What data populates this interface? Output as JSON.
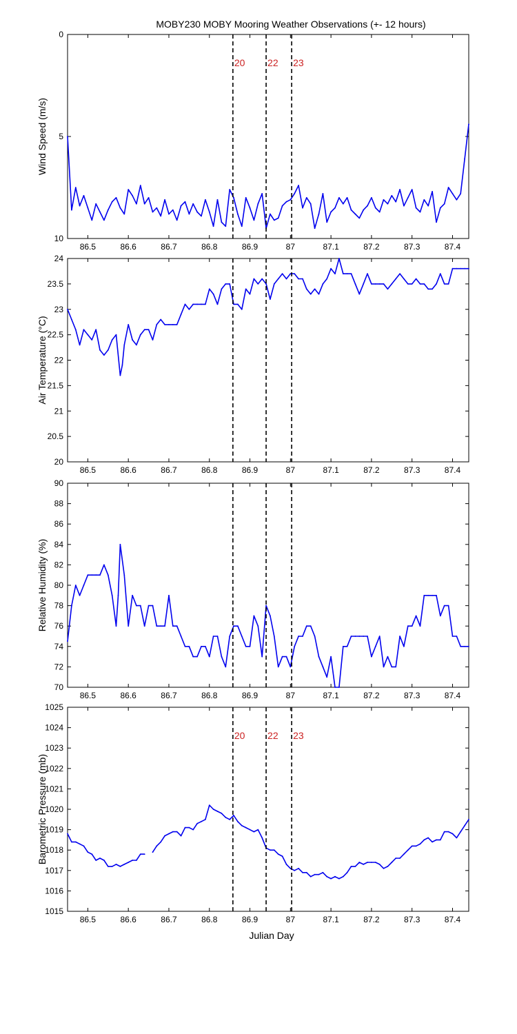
{
  "figure": {
    "title": "MOBY230 MOBY Mooring Weather Observations (+- 12 hours)",
    "xlabel": "Julian Day",
    "x_ticks": [
      "86.5",
      "86.6",
      "86.7",
      "86.8",
      "86.9",
      "87",
      "87.1",
      "87.2",
      "87.3",
      "87.4"
    ],
    "markers": [
      {
        "label": "20",
        "x": 86.858
      },
      {
        "label": "22",
        "x": 86.94
      },
      {
        "label": "23",
        "x": 87.003
      }
    ],
    "colors": {
      "series": "#0000ee",
      "marker_label": "#cc2222",
      "marker_line": "#000000"
    }
  },
  "chart_data": [
    {
      "type": "line",
      "ylabel": "Wind Speed (m/s)",
      "xlim": [
        86.45,
        87.44
      ],
      "ylim": [
        10,
        0
      ],
      "y_reversed": true,
      "y_ticks": [
        "0",
        "5",
        "10"
      ],
      "show_marker_labels": true,
      "series": [
        {
          "x": [
            86.45,
            86.46,
            86.47,
            86.48,
            86.49,
            86.5,
            86.51,
            86.52,
            86.53,
            86.54,
            86.55,
            86.56,
            86.57,
            86.58,
            86.59,
            86.6,
            86.61,
            86.62,
            86.63,
            86.64,
            86.65,
            86.66,
            86.67,
            86.68,
            86.69,
            86.7,
            86.71,
            86.72,
            86.73,
            86.74,
            86.75,
            86.76,
            86.77,
            86.78,
            86.79,
            86.8,
            86.81,
            86.82,
            86.83,
            86.84,
            86.85,
            86.86,
            86.87,
            86.88,
            86.89,
            86.9,
            86.91,
            86.92,
            86.93,
            86.94,
            86.95,
            86.96,
            86.97,
            86.98,
            86.99,
            87.0,
            87.01,
            87.02,
            87.03,
            87.04,
            87.05,
            87.06,
            87.07,
            87.08,
            87.09,
            87.1,
            87.11,
            87.12,
            87.13,
            87.14,
            87.15,
            87.16,
            87.17,
            87.18,
            87.19,
            87.2,
            87.21,
            87.22,
            87.23,
            87.24,
            87.25,
            87.26,
            87.27,
            87.28,
            87.29,
            87.3,
            87.31,
            87.32,
            87.33,
            87.34,
            87.35,
            87.36,
            87.37,
            87.38,
            87.39,
            87.4,
            87.41,
            87.42,
            87.43,
            87.44
          ],
          "y": [
            5.0,
            8.6,
            7.5,
            8.4,
            7.9,
            8.5,
            9.1,
            8.3,
            8.7,
            9.1,
            8.6,
            8.2,
            8.0,
            8.5,
            8.8,
            7.6,
            7.9,
            8.3,
            7.4,
            8.3,
            8.0,
            8.7,
            8.5,
            8.9,
            8.1,
            8.8,
            8.6,
            9.1,
            8.4,
            8.2,
            8.8,
            8.3,
            8.7,
            8.9,
            8.1,
            8.7,
            9.4,
            8.1,
            9.2,
            9.4,
            7.6,
            8.0,
            8.8,
            9.4,
            8.0,
            8.5,
            9.1,
            8.3,
            7.8,
            9.5,
            8.8,
            9.1,
            9.0,
            8.4,
            8.2,
            8.1,
            7.8,
            7.4,
            8.5,
            8.0,
            8.3,
            9.5,
            8.8,
            7.8,
            9.2,
            8.7,
            8.5,
            8.0,
            8.3,
            8.0,
            8.6,
            8.8,
            9.0,
            8.6,
            8.4,
            8.0,
            8.5,
            8.7,
            8.1,
            8.3,
            7.9,
            8.2,
            7.6,
            8.4,
            8.0,
            7.6,
            8.5,
            8.7,
            8.1,
            8.4,
            7.7,
            9.2,
            8.5,
            8.3,
            7.5,
            7.8,
            8.1,
            7.8,
            6.1,
            4.4
          ]
        }
      ]
    },
    {
      "type": "line",
      "ylabel": "Air Temperature (°C)",
      "xlim": [
        86.45,
        87.44
      ],
      "ylim": [
        20,
        24
      ],
      "y_ticks": [
        "20",
        "20.5",
        "21",
        "21.5",
        "22",
        "22.5",
        "23",
        "23.5",
        "24"
      ],
      "series": [
        {
          "x": [
            86.45,
            86.46,
            86.47,
            86.48,
            86.49,
            86.5,
            86.51,
            86.52,
            86.53,
            86.54,
            86.55,
            86.56,
            86.57,
            86.58,
            86.585,
            86.59,
            86.6,
            86.61,
            86.62,
            86.63,
            86.64,
            86.65,
            86.66,
            86.67,
            86.68,
            86.69,
            86.7,
            86.71,
            86.72,
            86.73,
            86.74,
            86.75,
            86.76,
            86.77,
            86.78,
            86.79,
            86.8,
            86.81,
            86.82,
            86.83,
            86.84,
            86.85,
            86.86,
            86.87,
            86.88,
            86.89,
            86.9,
            86.91,
            86.92,
            86.93,
            86.94,
            86.95,
            86.96,
            86.97,
            86.98,
            86.99,
            87.0,
            87.01,
            87.02,
            87.03,
            87.04,
            87.05,
            87.06,
            87.07,
            87.08,
            87.09,
            87.1,
            87.11,
            87.12,
            87.13,
            87.14,
            87.15,
            87.16,
            87.17,
            87.18,
            87.19,
            87.2,
            87.21,
            87.22,
            87.23,
            87.24,
            87.25,
            87.26,
            87.27,
            87.28,
            87.29,
            87.3,
            87.31,
            87.32,
            87.33,
            87.34,
            87.35,
            87.36,
            87.37,
            87.38,
            87.39,
            87.4,
            87.41,
            87.42,
            87.43,
            87.44
          ],
          "y": [
            23.0,
            22.8,
            22.6,
            22.3,
            22.6,
            22.5,
            22.4,
            22.6,
            22.2,
            22.1,
            22.2,
            22.4,
            22.5,
            21.7,
            21.9,
            22.3,
            22.7,
            22.4,
            22.3,
            22.5,
            22.6,
            22.6,
            22.4,
            22.7,
            22.8,
            22.7,
            22.7,
            22.7,
            22.7,
            22.9,
            23.1,
            23.0,
            23.1,
            23.1,
            23.1,
            23.1,
            23.4,
            23.3,
            23.1,
            23.4,
            23.5,
            23.5,
            23.1,
            23.1,
            23.0,
            23.4,
            23.3,
            23.6,
            23.5,
            23.6,
            23.5,
            23.2,
            23.5,
            23.6,
            23.7,
            23.6,
            23.7,
            23.7,
            23.6,
            23.6,
            23.4,
            23.3,
            23.4,
            23.3,
            23.5,
            23.6,
            23.8,
            23.7,
            24.0,
            23.7,
            23.7,
            23.7,
            23.5,
            23.3,
            23.5,
            23.7,
            23.5,
            23.5,
            23.5,
            23.5,
            23.4,
            23.5,
            23.6,
            23.7,
            23.6,
            23.5,
            23.5,
            23.6,
            23.5,
            23.5,
            23.4,
            23.4,
            23.5,
            23.7,
            23.5,
            23.5,
            23.8,
            23.8,
            23.8,
            23.8,
            23.8
          ]
        }
      ]
    },
    {
      "type": "line",
      "ylabel": "Relative Humidity (%)",
      "xlim": [
        86.45,
        87.44
      ],
      "ylim": [
        70,
        90
      ],
      "y_ticks": [
        "70",
        "72",
        "74",
        "76",
        "78",
        "80",
        "82",
        "84",
        "86",
        "88",
        "90"
      ],
      "series": [
        {
          "x": [
            86.45,
            86.46,
            86.47,
            86.48,
            86.49,
            86.5,
            86.51,
            86.52,
            86.53,
            86.54,
            86.55,
            86.56,
            86.57,
            86.575,
            86.58,
            86.59,
            86.6,
            86.61,
            86.62,
            86.63,
            86.64,
            86.65,
            86.66,
            86.67,
            86.68,
            86.69,
            86.7,
            86.71,
            86.72,
            86.73,
            86.74,
            86.75,
            86.76,
            86.77,
            86.78,
            86.79,
            86.8,
            86.81,
            86.82,
            86.83,
            86.84,
            86.85,
            86.86,
            86.87,
            86.88,
            86.89,
            86.9,
            86.91,
            86.92,
            86.93,
            86.94,
            86.95,
            86.96,
            86.97,
            86.98,
            86.99,
            87.0,
            87.01,
            87.02,
            87.03,
            87.04,
            87.05,
            87.06,
            87.07,
            87.08,
            87.09,
            87.1,
            87.11,
            87.12,
            87.13,
            87.14,
            87.15,
            87.16,
            87.17,
            87.18,
            87.19,
            87.2,
            87.21,
            87.22,
            87.23,
            87.24,
            87.25,
            87.26,
            87.27,
            87.28,
            87.29,
            87.3,
            87.31,
            87.32,
            87.33,
            87.34,
            87.35,
            87.36,
            87.37,
            87.38,
            87.39,
            87.4,
            87.41,
            87.42,
            87.43,
            87.44
          ],
          "y": [
            74.5,
            78.0,
            80.0,
            79.0,
            80.0,
            81.0,
            81.0,
            81.0,
            81.0,
            82.0,
            81.0,
            79.0,
            76.0,
            79.0,
            84.0,
            81.0,
            76.0,
            79.0,
            78.0,
            78.0,
            76.0,
            78.0,
            78.0,
            76.0,
            76.0,
            76.0,
            79.0,
            76.0,
            76.0,
            75.0,
            74.0,
            74.0,
            73.0,
            73.0,
            74.0,
            74.0,
            73.0,
            75.0,
            75.0,
            73.0,
            72.0,
            75.0,
            76.0,
            76.0,
            75.0,
            74.0,
            74.0,
            77.0,
            76.0,
            73.0,
            78.0,
            77.0,
            75.0,
            72.0,
            73.0,
            73.0,
            72.0,
            74.0,
            75.0,
            75.0,
            76.0,
            76.0,
            75.0,
            73.0,
            72.0,
            71.0,
            73.0,
            70.0,
            70.0,
            74.0,
            74.0,
            75.0,
            75.0,
            75.0,
            75.0,
            75.0,
            73.0,
            74.0,
            75.0,
            72.0,
            73.0,
            72.0,
            72.0,
            75.0,
            74.0,
            76.0,
            76.0,
            77.0,
            76.0,
            79.0,
            79.0,
            79.0,
            79.0,
            77.0,
            78.0,
            78.0,
            75.0,
            75.0,
            74.0,
            74.0,
            74.0
          ]
        }
      ]
    },
    {
      "type": "line",
      "ylabel": "Barometric Pressure (mb)",
      "xlim": [
        86.45,
        87.44
      ],
      "ylim": [
        1015,
        1025
      ],
      "y_ticks": [
        "1015",
        "1016",
        "1017",
        "1018",
        "1019",
        "1020",
        "1021",
        "1022",
        "1023",
        "1024",
        "1025"
      ],
      "show_marker_labels": true,
      "series": [
        {
          "x": [
            86.45,
            86.46,
            86.47,
            86.48,
            86.49,
            86.5,
            86.51,
            86.52,
            86.53,
            86.54,
            86.55,
            86.56,
            86.57,
            86.58,
            86.59,
            86.6,
            86.61,
            86.62,
            86.63,
            86.64
          ],
          "y": [
            1018.8,
            1018.4,
            1018.4,
            1018.3,
            1018.2,
            1017.9,
            1017.8,
            1017.5,
            1017.6,
            1017.5,
            1017.2,
            1017.2,
            1017.3,
            1017.2,
            1017.3,
            1017.4,
            1017.5,
            1017.5,
            1017.8,
            1017.8
          ]
        },
        {
          "x": [
            86.66,
            86.67,
            86.68,
            86.69,
            86.7,
            86.71,
            86.72,
            86.73,
            86.74,
            86.75,
            86.76,
            86.77,
            86.78,
            86.79,
            86.8,
            86.81,
            86.82,
            86.83,
            86.84,
            86.85,
            86.86,
            86.87,
            86.88,
            86.89,
            86.9,
            86.91,
            86.92,
            86.93,
            86.94,
            86.95,
            86.96,
            86.97,
            86.98,
            86.99,
            87.0,
            87.01,
            87.02,
            87.03,
            87.04,
            87.05,
            87.06,
            87.07,
            87.08,
            87.09,
            87.1,
            87.11,
            87.12,
            87.13,
            87.14,
            87.15,
            87.16,
            87.17,
            87.18,
            87.19,
            87.2,
            87.21,
            87.22,
            87.23,
            87.24,
            87.25,
            87.26,
            87.27,
            87.28,
            87.29,
            87.3,
            87.31,
            87.32,
            87.33,
            87.34,
            87.35,
            87.36,
            87.37,
            87.38,
            87.39,
            87.4,
            87.41,
            87.42,
            87.43,
            87.44
          ],
          "y": [
            1017.9,
            1018.2,
            1018.4,
            1018.7,
            1018.8,
            1018.9,
            1018.9,
            1018.7,
            1019.1,
            1019.1,
            1019.0,
            1019.3,
            1019.4,
            1019.5,
            1020.2,
            1020.0,
            1019.9,
            1019.8,
            1019.6,
            1019.5,
            1019.7,
            1019.4,
            1019.2,
            1019.1,
            1019.0,
            1018.9,
            1019.0,
            1018.6,
            1018.1,
            1018.0,
            1018.0,
            1017.8,
            1017.7,
            1017.3,
            1017.1,
            1017.0,
            1017.1,
            1016.9,
            1016.9,
            1016.7,
            1016.8,
            1016.8,
            1016.9,
            1016.7,
            1016.6,
            1016.7,
            1016.6,
            1016.7,
            1016.9,
            1017.2,
            1017.2,
            1017.4,
            1017.3,
            1017.4,
            1017.4,
            1017.4,
            1017.3,
            1017.1,
            1017.2,
            1017.4,
            1017.6,
            1017.6,
            1017.8,
            1018.0,
            1018.2,
            1018.2,
            1018.3,
            1018.5,
            1018.6,
            1018.4,
            1018.5,
            1018.5,
            1018.9,
            1018.9,
            1018.8,
            1018.6,
            1018.9,
            1019.2,
            1019.5
          ]
        }
      ]
    }
  ]
}
